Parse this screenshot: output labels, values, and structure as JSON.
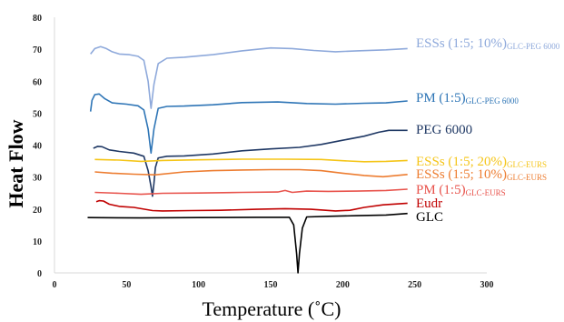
{
  "chart_data": {
    "type": "line",
    "title": "",
    "xlabel": "Temperature (˚C)",
    "ylabel": "Heat Flow",
    "xlim": [
      0,
      300
    ],
    "ylim": [
      0,
      80
    ],
    "xticks": [
      0,
      50,
      100,
      150,
      200,
      250,
      300
    ],
    "yticks": [
      0,
      10,
      20,
      30,
      40,
      50,
      60,
      70,
      80
    ],
    "grid": false,
    "legend": "inline labels at right end of each curve",
    "series": [
      {
        "name": "ESSs (1:5; 10%)",
        "subscript": "GLC-PEG 6000",
        "color": "#8EA9DB",
        "points": [
          [
            25,
            68.5
          ],
          [
            28,
            70.2
          ],
          [
            32,
            70.8
          ],
          [
            36,
            70.2
          ],
          [
            40,
            69.2
          ],
          [
            45,
            68.5
          ],
          [
            52,
            68.3
          ],
          [
            58,
            67.8
          ],
          [
            62,
            66.5
          ],
          [
            65,
            60
          ],
          [
            67,
            51.5
          ],
          [
            69,
            59
          ],
          [
            72,
            65.5
          ],
          [
            78,
            67.2
          ],
          [
            90,
            67.5
          ],
          [
            110,
            68.3
          ],
          [
            130,
            69.5
          ],
          [
            150,
            70.4
          ],
          [
            165,
            70.2
          ],
          [
            180,
            69.6
          ],
          [
            195,
            69.2
          ],
          [
            210,
            69.5
          ],
          [
            230,
            69.8
          ],
          [
            245,
            70.2
          ]
        ]
      },
      {
        "name": "PM (1:5)",
        "subscript": "GLC-PEG 6000",
        "color": "#2E75B6",
        "points": [
          [
            25,
            50.5
          ],
          [
            26,
            54
          ],
          [
            28,
            55.8
          ],
          [
            31,
            56
          ],
          [
            35,
            54.5
          ],
          [
            40,
            53.2
          ],
          [
            50,
            52.8
          ],
          [
            58,
            52.3
          ],
          [
            62,
            51
          ],
          [
            65,
            45
          ],
          [
            67,
            37.5
          ],
          [
            69,
            45
          ],
          [
            72,
            51.5
          ],
          [
            78,
            52.1
          ],
          [
            90,
            52.2
          ],
          [
            110,
            52.6
          ],
          [
            130,
            53.3
          ],
          [
            155,
            53.5
          ],
          [
            175,
            53
          ],
          [
            195,
            52.8
          ],
          [
            215,
            53.1
          ],
          [
            230,
            53.2
          ],
          [
            245,
            53.8
          ]
        ]
      },
      {
        "name": "PEG 6000",
        "subscript": "",
        "color": "#1F3864",
        "points": [
          [
            27,
            39
          ],
          [
            30,
            39.6
          ],
          [
            33,
            39.5
          ],
          [
            38,
            38.5
          ],
          [
            45,
            38
          ],
          [
            55,
            37.5
          ],
          [
            62,
            36.5
          ],
          [
            65,
            32
          ],
          [
            67,
            27
          ],
          [
            68,
            24
          ],
          [
            69,
            28
          ],
          [
            70,
            33
          ],
          [
            72,
            36
          ],
          [
            78,
            36.5
          ],
          [
            90,
            36.6
          ],
          [
            110,
            37.2
          ],
          [
            130,
            38.2
          ],
          [
            150,
            38.8
          ],
          [
            170,
            39.3
          ],
          [
            185,
            40.2
          ],
          [
            200,
            41.5
          ],
          [
            215,
            42.8
          ],
          [
            225,
            44
          ],
          [
            232,
            44.6
          ],
          [
            245,
            44.6
          ]
        ]
      },
      {
        "name": "ESSs (1:5; 20%)",
        "subscript": "GLC-EURS",
        "color": "#F5C518",
        "points": [
          [
            28,
            35.5
          ],
          [
            45,
            35.3
          ],
          [
            60,
            34.9
          ],
          [
            75,
            35.2
          ],
          [
            100,
            35.4
          ],
          [
            130,
            35.6
          ],
          [
            160,
            35.6
          ],
          [
            185,
            35.5
          ],
          [
            200,
            35.1
          ],
          [
            215,
            34.8
          ],
          [
            230,
            34.9
          ],
          [
            245,
            35.2
          ]
        ]
      },
      {
        "name": "ESSs (1:5; 10%)",
        "subscript": "GLC-EURS",
        "color": "#ED7D31",
        "points": [
          [
            28,
            31.6
          ],
          [
            40,
            31.2
          ],
          [
            55,
            30.9
          ],
          [
            70,
            30.7
          ],
          [
            90,
            31.6
          ],
          [
            110,
            32
          ],
          [
            130,
            32.2
          ],
          [
            150,
            32.3
          ],
          [
            170,
            32.3
          ],
          [
            185,
            32
          ],
          [
            200,
            31.2
          ],
          [
            215,
            30.5
          ],
          [
            228,
            30.1
          ],
          [
            245,
            30.8
          ]
        ]
      },
      {
        "name": "PM (1:5)",
        "subscript": "GLC-EURS",
        "color": "#E8534C",
        "points": [
          [
            28,
            25.2
          ],
          [
            45,
            24.9
          ],
          [
            60,
            24.6
          ],
          [
            75,
            24.9
          ],
          [
            100,
            25
          ],
          [
            130,
            25.2
          ],
          [
            155,
            25.3
          ],
          [
            160,
            25.8
          ],
          [
            165,
            25.2
          ],
          [
            175,
            25.6
          ],
          [
            190,
            25.5
          ],
          [
            210,
            25.6
          ],
          [
            230,
            25.8
          ],
          [
            245,
            26.2
          ]
        ]
      },
      {
        "name": "Eudr",
        "subscript": "",
        "color": "#C00000",
        "points": [
          [
            29,
            22.3
          ],
          [
            31,
            22.6
          ],
          [
            34,
            22.5
          ],
          [
            38,
            21.5
          ],
          [
            45,
            20.8
          ],
          [
            55,
            20.5
          ],
          [
            68,
            19.5
          ],
          [
            75,
            19.4
          ],
          [
            95,
            19.5
          ],
          [
            115,
            19.6
          ],
          [
            140,
            19.9
          ],
          [
            160,
            20.1
          ],
          [
            178,
            19.9
          ],
          [
            195,
            19.4
          ],
          [
            205,
            19.6
          ],
          [
            215,
            20.5
          ],
          [
            228,
            21.3
          ],
          [
            245,
            21.8
          ]
        ]
      },
      {
        "name": "GLC",
        "subscript": "",
        "color": "#000000",
        "points": [
          [
            23,
            17.3
          ],
          [
            60,
            17.2
          ],
          [
            100,
            17.3
          ],
          [
            140,
            17.4
          ],
          [
            163,
            17.4
          ],
          [
            166,
            15
          ],
          [
            168,
            6
          ],
          [
            169,
            0
          ],
          [
            170,
            6
          ],
          [
            172,
            14
          ],
          [
            175,
            17.5
          ],
          [
            190,
            17.7
          ],
          [
            210,
            17.9
          ],
          [
            230,
            18.1
          ],
          [
            245,
            18.6
          ]
        ]
      }
    ],
    "annotations": [
      "ESSs (1:5; 10%)GLC-PEG 6000",
      "PM (1:5)GLC-PEG 6000",
      "PEG 6000",
      "ESSs (1:5; 20%)GLC-EURS",
      "ESSs (1:5; 10%)GLC-EURS",
      "PM (1:5)GLC-EURS",
      "Eudr",
      "GLC"
    ]
  }
}
